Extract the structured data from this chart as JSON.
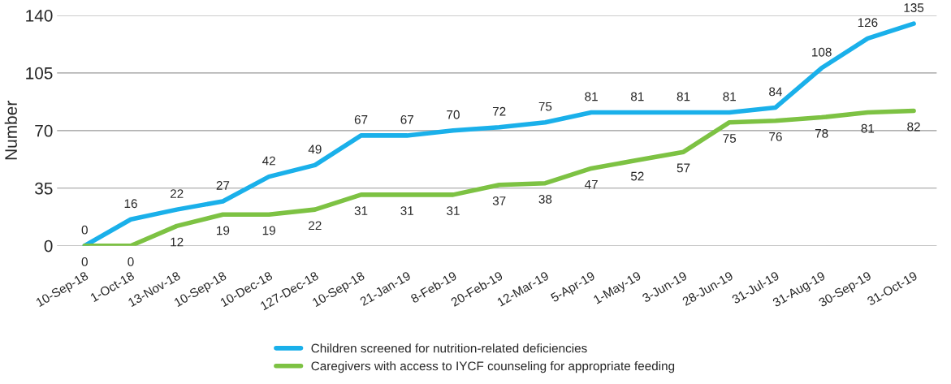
{
  "chart_data": {
    "type": "line",
    "ylabel": "Number",
    "categories": [
      "10-Sep-18",
      "1-Oct-18",
      "13-Nov-18",
      "10-Sep-18",
      "10-Dec-18",
      "127-Dec-18",
      "10-Sep-18",
      "21-Jan-19",
      "8-Feb-19",
      "20-Feb-19",
      "12-Mar-19",
      "5-Apr-19",
      "1-May-19",
      "3-Jun-19",
      "28-Jun-19",
      "31-Jul-19",
      "31-Aug-19",
      "30-Sep-19",
      "31-Oct-19"
    ],
    "series": [
      {
        "name": "Children screened for nutrition-related deficiencies",
        "color": "#1ab0ea",
        "values": [
          0,
          16,
          22,
          27,
          42,
          49,
          67,
          67,
          70,
          72,
          75,
          81,
          81,
          81,
          81,
          84,
          108,
          126,
          135
        ]
      },
      {
        "name": "Caregivers with access to IYCF counseling for appropriate feeding",
        "color": "#7dc243",
        "values": [
          0,
          0,
          12,
          19,
          19,
          22,
          31,
          31,
          31,
          37,
          38,
          47,
          52,
          57,
          75,
          76,
          78,
          81,
          82
        ]
      }
    ],
    "ylim": [
      0,
      140
    ],
    "yticks": [
      0,
      35,
      70,
      105,
      140
    ],
    "grid": "y",
    "legend": "bottom",
    "data_labels": true,
    "marker": "none",
    "line_style": "solid"
  }
}
